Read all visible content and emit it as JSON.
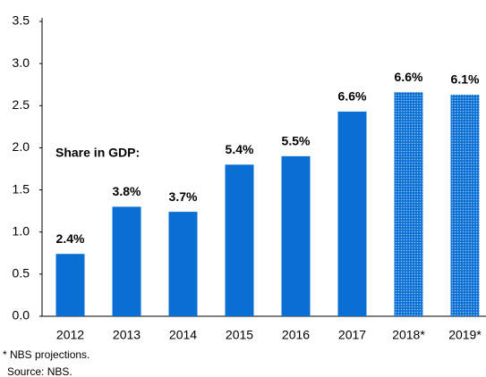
{
  "chart_data": {
    "type": "bar",
    "categories": [
      "2012",
      "2013",
      "2014",
      "2015",
      "2016",
      "2017",
      "2018*",
      "2019*"
    ],
    "values": [
      0.74,
      1.3,
      1.24,
      1.8,
      1.9,
      2.43,
      2.66,
      2.63
    ],
    "bar_labels": [
      "2.4%",
      "3.8%",
      "3.7%",
      "5.4%",
      "5.5%",
      "6.6%",
      "6.6%",
      "6.1%"
    ],
    "patterned": [
      false,
      false,
      false,
      false,
      false,
      false,
      true,
      true
    ],
    "color": "#0a6fd3",
    "ylim": [
      0,
      3.5
    ],
    "yticks": [
      {
        "value": 0,
        "label": "0.0"
      },
      0.5,
      {
        "value": 1,
        "label": "1.0"
      },
      1.5,
      {
        "value": 2,
        "label": "2.0"
      },
      2.5,
      {
        "value": 3,
        "label": "3.0"
      },
      3.5
    ],
    "grid": false,
    "annotation": "Share in GDP:",
    "footnotes": [
      "* NBS projections.",
      "Source: NBS."
    ]
  }
}
